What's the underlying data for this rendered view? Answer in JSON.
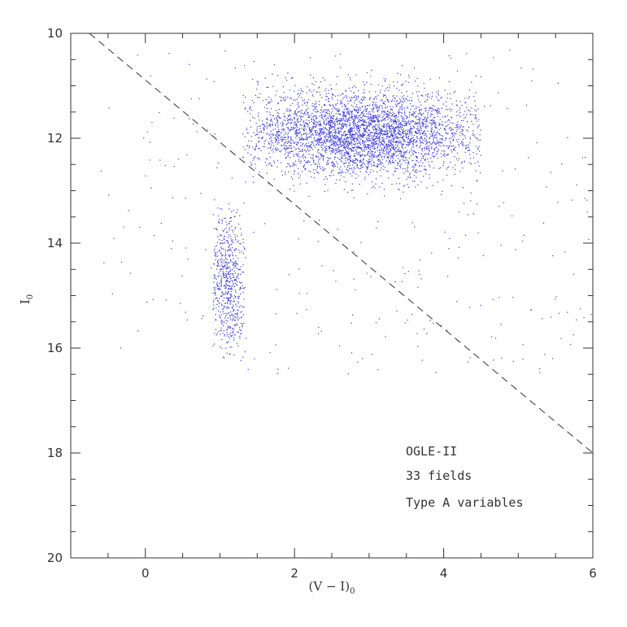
{
  "chart_data": {
    "type": "scatter",
    "xlabel_main": "(V − I)",
    "xlabel_sub": "0",
    "ylabel_main": "I",
    "ylabel_sub": "0",
    "xlim": [
      -1,
      6
    ],
    "ylim": [
      20,
      10
    ],
    "y_inverted": true,
    "x_ticks": [
      0,
      2,
      4,
      6
    ],
    "y_ticks": [
      10,
      12,
      14,
      16,
      18,
      20
    ],
    "grid": false,
    "point_color": "#3a3ad8",
    "line_color": "#333333",
    "annotations": [
      "OGLE-II",
      "33 fields",
      "Type A variables"
    ],
    "reference_line": {
      "style": "dashed",
      "x": [
        -0.75,
        6.0
      ],
      "y": [
        10.0,
        18.0
      ]
    },
    "point_groups": [
      {
        "group": "red clump branch",
        "x_center": 1.1,
        "x_spread": 0.12,
        "y_center": 14.7,
        "y_spread": 0.7,
        "x_range": [
          0.9,
          1.35
        ],
        "y_range": [
          13.2,
          16.3
        ],
        "count": 700
      },
      {
        "group": "upper giant branch",
        "x_center": 2.9,
        "x_spread": 0.8,
        "y_center": 11.9,
        "y_spread": 0.4,
        "x_range": [
          1.3,
          4.5
        ],
        "y_range": [
          10.6,
          13.2
        ],
        "count": 4200
      },
      {
        "group": "sparse field stars",
        "x_range": [
          -0.6,
          6.0
        ],
        "y_range": [
          10.3,
          16.5
        ],
        "count": 300
      }
    ]
  }
}
